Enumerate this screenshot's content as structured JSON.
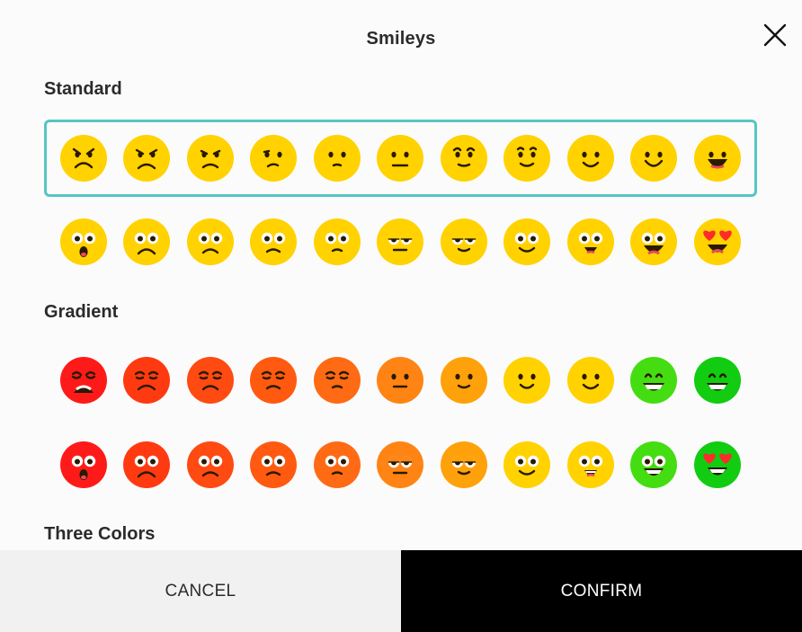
{
  "dialog": {
    "title": "Smileys",
    "close_icon": "close-icon",
    "cancel_label": "CANCEL",
    "confirm_label": "CONFIRM"
  },
  "sections": [
    {
      "label": "Standard"
    },
    {
      "label": "Gradient"
    },
    {
      "label": "Three Colors"
    }
  ],
  "colors": {
    "accent_border": "#55c6c2",
    "yellow": "#ffd200",
    "features": "#2a1a00",
    "heart": "#ff2a2a",
    "gradient": [
      "#ff1a1a",
      "#ff3a10",
      "#ff4a12",
      "#ff5a10",
      "#ff6a14",
      "#ff8414",
      "#ffa10a",
      "#ffd200",
      "#ffd200",
      "#44dd11",
      "#11cc11"
    ]
  },
  "rows": [
    {
      "style": "standard-line",
      "selected": true,
      "faces": [
        "angry",
        "mad",
        "grumpy",
        "displeased",
        "worried",
        "neutral",
        "unsure",
        "slightly-unsure",
        "slight-smile",
        "smile",
        "grin"
      ]
    },
    {
      "style": "standard-eyes",
      "selected": false,
      "faces": [
        "shocked",
        "sad",
        "frown",
        "concerned",
        "skeptical",
        "meh",
        "content",
        "smile",
        "happy",
        "excited",
        "heart-eyes"
      ]
    },
    {
      "style": "gradient-line",
      "selected": false,
      "faces": [
        "crying",
        "weary",
        "sad",
        "unhappy",
        "pensive",
        "neutral",
        "calm",
        "smile",
        "happy",
        "grin",
        "big-grin"
      ]
    },
    {
      "style": "gradient-eyes",
      "selected": false,
      "faces": [
        "shocked",
        "upset",
        "frown",
        "sad",
        "doubtful",
        "meh",
        "content",
        "smile",
        "happy",
        "joy",
        "heart-eyes"
      ]
    }
  ]
}
